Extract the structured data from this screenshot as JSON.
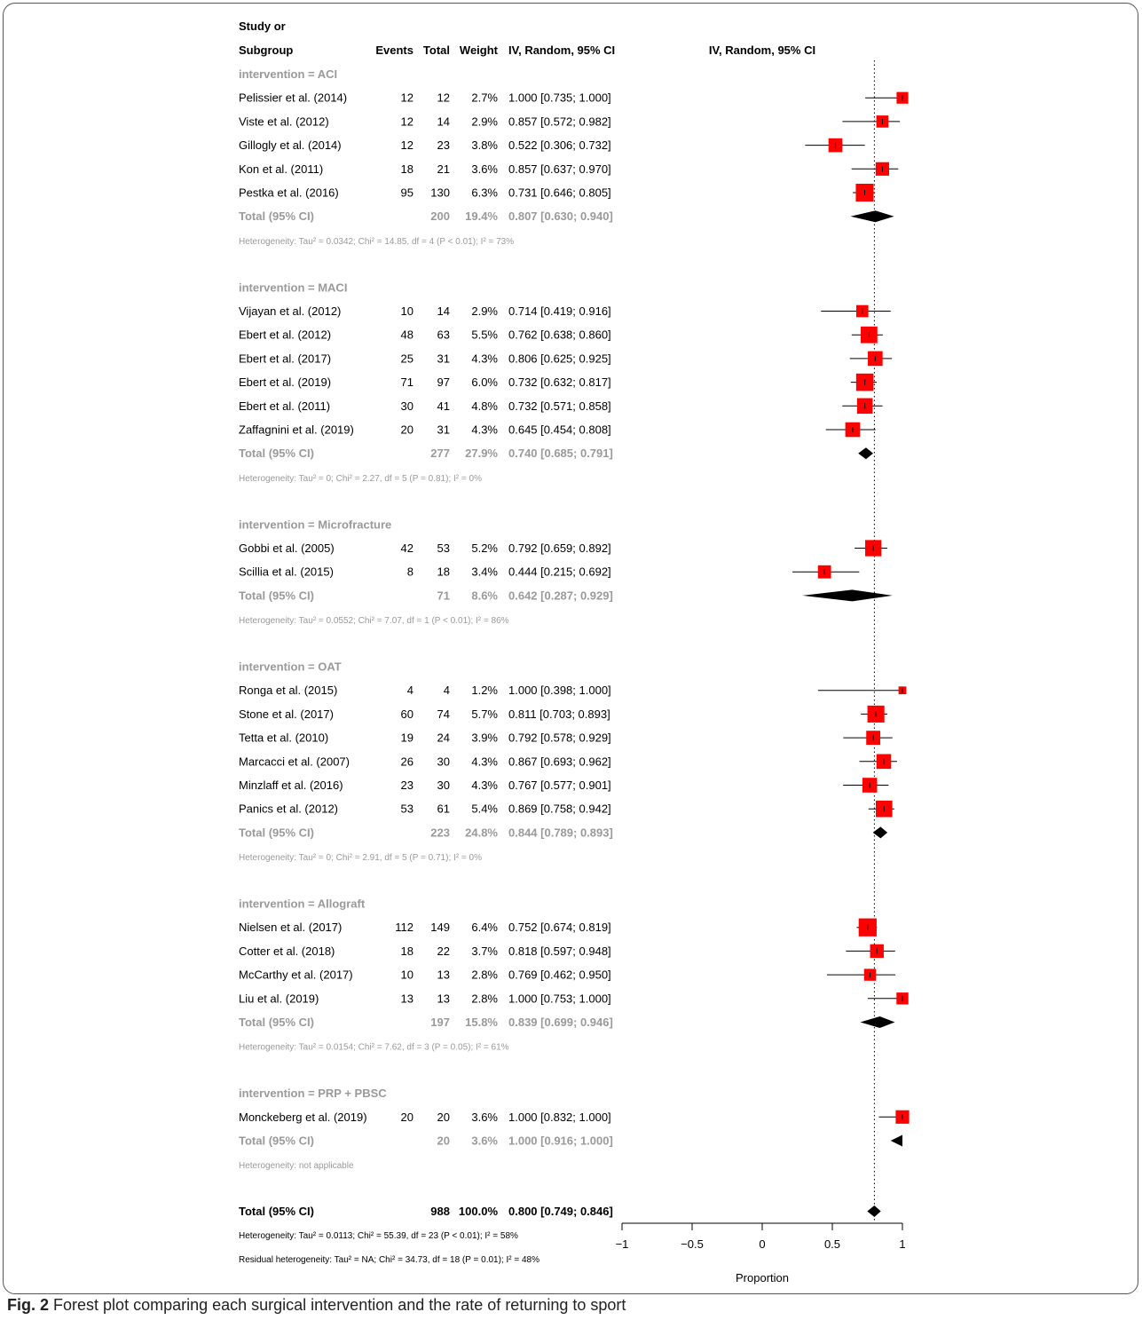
{
  "caption": {
    "label": "Fig. 2",
    "text": "Forest plot comparing each surgical intervention and the rate of returning to sport"
  },
  "chart_data": {
    "type": "forest",
    "header": {
      "study_line1": "Study or",
      "study_line2": "Subgroup",
      "events": "Events",
      "total": "Total",
      "weight": "Weight",
      "ci": "IV, Random, 95% CI",
      "plot": "IV, Random, 95% CI"
    },
    "xlabel": "Proportion",
    "xlim": [
      -1,
      1
    ],
    "ticks": [
      "−1",
      "−0.5",
      "0",
      "0.5",
      "1"
    ],
    "tick_values": [
      -1,
      -0.5,
      0,
      0.5,
      1
    ],
    "reference_line": 0.8,
    "colors": {
      "box": "#ff0000",
      "subgroup_text": "#9a9a9a",
      "text": "#000000",
      "diamond": "#000000"
    },
    "groups": [
      {
        "title": "intervention = ACI",
        "studies": [
          {
            "name": "Pelissier et al. (2014)",
            "events": "12",
            "total": "12",
            "weight": "2.7%",
            "ci_text": "1.000 [0.735; 1.000]",
            "est": 1.0,
            "lo": 0.735,
            "hi": 1.0,
            "w": 2.7
          },
          {
            "name": "Viste et al. (2012)",
            "events": "12",
            "total": "14",
            "weight": "2.9%",
            "ci_text": "0.857 [0.572; 0.982]",
            "est": 0.857,
            "lo": 0.572,
            "hi": 0.982,
            "w": 2.9
          },
          {
            "name": "Gillogly et al. (2014)",
            "events": "12",
            "total": "23",
            "weight": "3.8%",
            "ci_text": "0.522 [0.306; 0.732]",
            "est": 0.522,
            "lo": 0.306,
            "hi": 0.732,
            "w": 3.8
          },
          {
            "name": "Kon et al. (2011)",
            "events": "18",
            "total": "21",
            "weight": "3.6%",
            "ci_text": "0.857 [0.637; 0.970]",
            "est": 0.857,
            "lo": 0.637,
            "hi": 0.97,
            "w": 3.6
          },
          {
            "name": "Pestka et al. (2016)",
            "events": "95",
            "total": "130",
            "weight": "6.3%",
            "ci_text": "0.731 [0.646; 0.805]",
            "est": 0.731,
            "lo": 0.646,
            "hi": 0.805,
            "w": 6.3
          }
        ],
        "total": {
          "label": "Total (95% CI)",
          "total": "200",
          "weight": "19.4%",
          "ci_text": "0.807 [0.630; 0.940]",
          "est": 0.807,
          "lo": 0.63,
          "hi": 0.94
        },
        "heterogeneity": "Heterogeneity: Tau² = 0.0342; Chi² = 14.85, df = 4 (P < 0.01); I² = 73%"
      },
      {
        "title": "intervention = MACI",
        "studies": [
          {
            "name": "Vijayan et al. (2012)",
            "events": "10",
            "total": "14",
            "weight": "2.9%",
            "ci_text": "0.714 [0.419; 0.916]",
            "est": 0.714,
            "lo": 0.419,
            "hi": 0.916,
            "w": 2.9
          },
          {
            "name": "Ebert et al. (2012)",
            "events": "48",
            "total": "63",
            "weight": "5.5%",
            "ci_text": "0.762 [0.638; 0.860]",
            "est": 0.762,
            "lo": 0.638,
            "hi": 0.86,
            "w": 5.5
          },
          {
            "name": "Ebert et al. (2017)",
            "events": "25",
            "total": "31",
            "weight": "4.3%",
            "ci_text": "0.806 [0.625; 0.925]",
            "est": 0.806,
            "lo": 0.625,
            "hi": 0.925,
            "w": 4.3
          },
          {
            "name": "Ebert et al. (2019)",
            "events": "71",
            "total": "97",
            "weight": "6.0%",
            "ci_text": "0.732 [0.632; 0.817]",
            "est": 0.732,
            "lo": 0.632,
            "hi": 0.817,
            "w": 6.0
          },
          {
            "name": "Ebert et al. (2011)",
            "events": "30",
            "total": "41",
            "weight": "4.8%",
            "ci_text": "0.732 [0.571; 0.858]",
            "est": 0.732,
            "lo": 0.571,
            "hi": 0.858,
            "w": 4.8
          },
          {
            "name": "Zaffagnini et al. (2019)",
            "events": "20",
            "total": "31",
            "weight": "4.3%",
            "ci_text": "0.645 [0.454; 0.808]",
            "est": 0.645,
            "lo": 0.454,
            "hi": 0.808,
            "w": 4.3
          }
        ],
        "total": {
          "label": "Total (95% CI)",
          "total": "277",
          "weight": "27.9%",
          "ci_text": "0.740 [0.685; 0.791]",
          "est": 0.74,
          "lo": 0.685,
          "hi": 0.791
        },
        "heterogeneity": "Heterogeneity: Tau² = 0; Chi² = 2.27, df = 5 (P = 0.81); I² = 0%"
      },
      {
        "title": "intervention = Microfracture",
        "studies": [
          {
            "name": "Gobbi et al. (2005)",
            "events": "42",
            "total": "53",
            "weight": "5.2%",
            "ci_text": "0.792 [0.659; 0.892]",
            "est": 0.792,
            "lo": 0.659,
            "hi": 0.892,
            "w": 5.2
          },
          {
            "name": "Scillia et al. (2015)",
            "events": "8",
            "total": "18",
            "weight": "3.4%",
            "ci_text": "0.444 [0.215; 0.692]",
            "est": 0.444,
            "lo": 0.215,
            "hi": 0.692,
            "w": 3.4
          }
        ],
        "total": {
          "label": "Total (95% CI)",
          "total": "71",
          "weight": "8.6%",
          "ci_text": "0.642 [0.287; 0.929]",
          "est": 0.642,
          "lo": 0.287,
          "hi": 0.929
        },
        "heterogeneity": "Heterogeneity: Tau² = 0.0552; Chi² = 7.07, df = 1 (P < 0.01); I² = 86%"
      },
      {
        "title": "intervention = OAT",
        "studies": [
          {
            "name": "Ronga et al. (2015)",
            "events": "4",
            "total": "4",
            "weight": "1.2%",
            "ci_text": "1.000 [0.398; 1.000]",
            "est": 1.0,
            "lo": 0.398,
            "hi": 1.0,
            "w": 1.2
          },
          {
            "name": "Stone et al. (2017)",
            "events": "60",
            "total": "74",
            "weight": "5.7%",
            "ci_text": "0.811 [0.703; 0.893]",
            "est": 0.811,
            "lo": 0.703,
            "hi": 0.893,
            "w": 5.7
          },
          {
            "name": "Tetta et al. (2010)",
            "events": "19",
            "total": "24",
            "weight": "3.9%",
            "ci_text": "0.792 [0.578; 0.929]",
            "est": 0.792,
            "lo": 0.578,
            "hi": 0.929,
            "w": 3.9
          },
          {
            "name": "Marcacci et al. (2007)",
            "events": "26",
            "total": "30",
            "weight": "4.3%",
            "ci_text": "0.867 [0.693; 0.962]",
            "est": 0.867,
            "lo": 0.693,
            "hi": 0.962,
            "w": 4.3
          },
          {
            "name": "Minzlaff et al. (2016)",
            "events": "23",
            "total": "30",
            "weight": "4.3%",
            "ci_text": "0.767 [0.577; 0.901]",
            "est": 0.767,
            "lo": 0.577,
            "hi": 0.901,
            "w": 4.3
          },
          {
            "name": "Panics et al. (2012)",
            "events": "53",
            "total": "61",
            "weight": "5.4%",
            "ci_text": "0.869 [0.758; 0.942]",
            "est": 0.869,
            "lo": 0.758,
            "hi": 0.942,
            "w": 5.4
          }
        ],
        "total": {
          "label": "Total (95% CI)",
          "total": "223",
          "weight": "24.8%",
          "ci_text": "0.844 [0.789; 0.893]",
          "est": 0.844,
          "lo": 0.789,
          "hi": 0.893
        },
        "heterogeneity": "Heterogeneity: Tau² = 0; Chi² = 2.91, df = 5 (P = 0.71); I² = 0%"
      },
      {
        "title": "intervention = Allograft",
        "studies": [
          {
            "name": "Nielsen et al. (2017)",
            "events": "112",
            "total": "149",
            "weight": "6.4%",
            "ci_text": "0.752 [0.674; 0.819]",
            "est": 0.752,
            "lo": 0.674,
            "hi": 0.819,
            "w": 6.4
          },
          {
            "name": "Cotter et al. (2018)",
            "events": "18",
            "total": "22",
            "weight": "3.7%",
            "ci_text": "0.818 [0.597; 0.948]",
            "est": 0.818,
            "lo": 0.597,
            "hi": 0.948,
            "w": 3.7
          },
          {
            "name": "McCarthy et al. (2017)",
            "events": "10",
            "total": "13",
            "weight": "2.8%",
            "ci_text": "0.769 [0.462; 0.950]",
            "est": 0.769,
            "lo": 0.462,
            "hi": 0.95,
            "w": 2.8
          },
          {
            "name": "Liu et al. (2019)",
            "events": "13",
            "total": "13",
            "weight": "2.8%",
            "ci_text": "1.000 [0.753; 1.000]",
            "est": 1.0,
            "lo": 0.753,
            "hi": 1.0,
            "w": 2.8
          }
        ],
        "total": {
          "label": "Total (95% CI)",
          "total": "197",
          "weight": "15.8%",
          "ci_text": "0.839 [0.699; 0.946]",
          "est": 0.839,
          "lo": 0.699,
          "hi": 0.946
        },
        "heterogeneity": "Heterogeneity: Tau² = 0.0154; Chi² = 7.62, df = 3 (P = 0.05); I² = 61%"
      },
      {
        "title": "intervention = PRP + PBSC",
        "studies": [
          {
            "name": "Monckeberg et al. (2019)",
            "events": "20",
            "total": "20",
            "weight": "3.6%",
            "ci_text": "1.000 [0.832; 1.000]",
            "est": 1.0,
            "lo": 0.832,
            "hi": 1.0,
            "w": 3.6
          }
        ],
        "total": {
          "label": "Total (95% CI)",
          "total": "20",
          "weight": "3.6%",
          "ci_text": "1.000 [0.916; 1.000]",
          "est": 1.0,
          "lo": 0.916,
          "hi": 1.0
        },
        "heterogeneity": "Heterogeneity: not applicable"
      }
    ],
    "overall": {
      "label": "Total (95% CI)",
      "total": "988",
      "weight": "100.0%",
      "ci_text": "0.800 [0.749; 0.846]",
      "est": 0.8,
      "lo": 0.749,
      "hi": 0.846,
      "heterogeneity": "Heterogeneity: Tau² = 0.0113; Chi² = 55.39, df = 23 (P < 0.01); I² = 58%",
      "residual": "Residual heterogeneity: Tau² = NA; Chi² = 34.73, df = 18 (P = 0.01); I² = 48%"
    }
  }
}
